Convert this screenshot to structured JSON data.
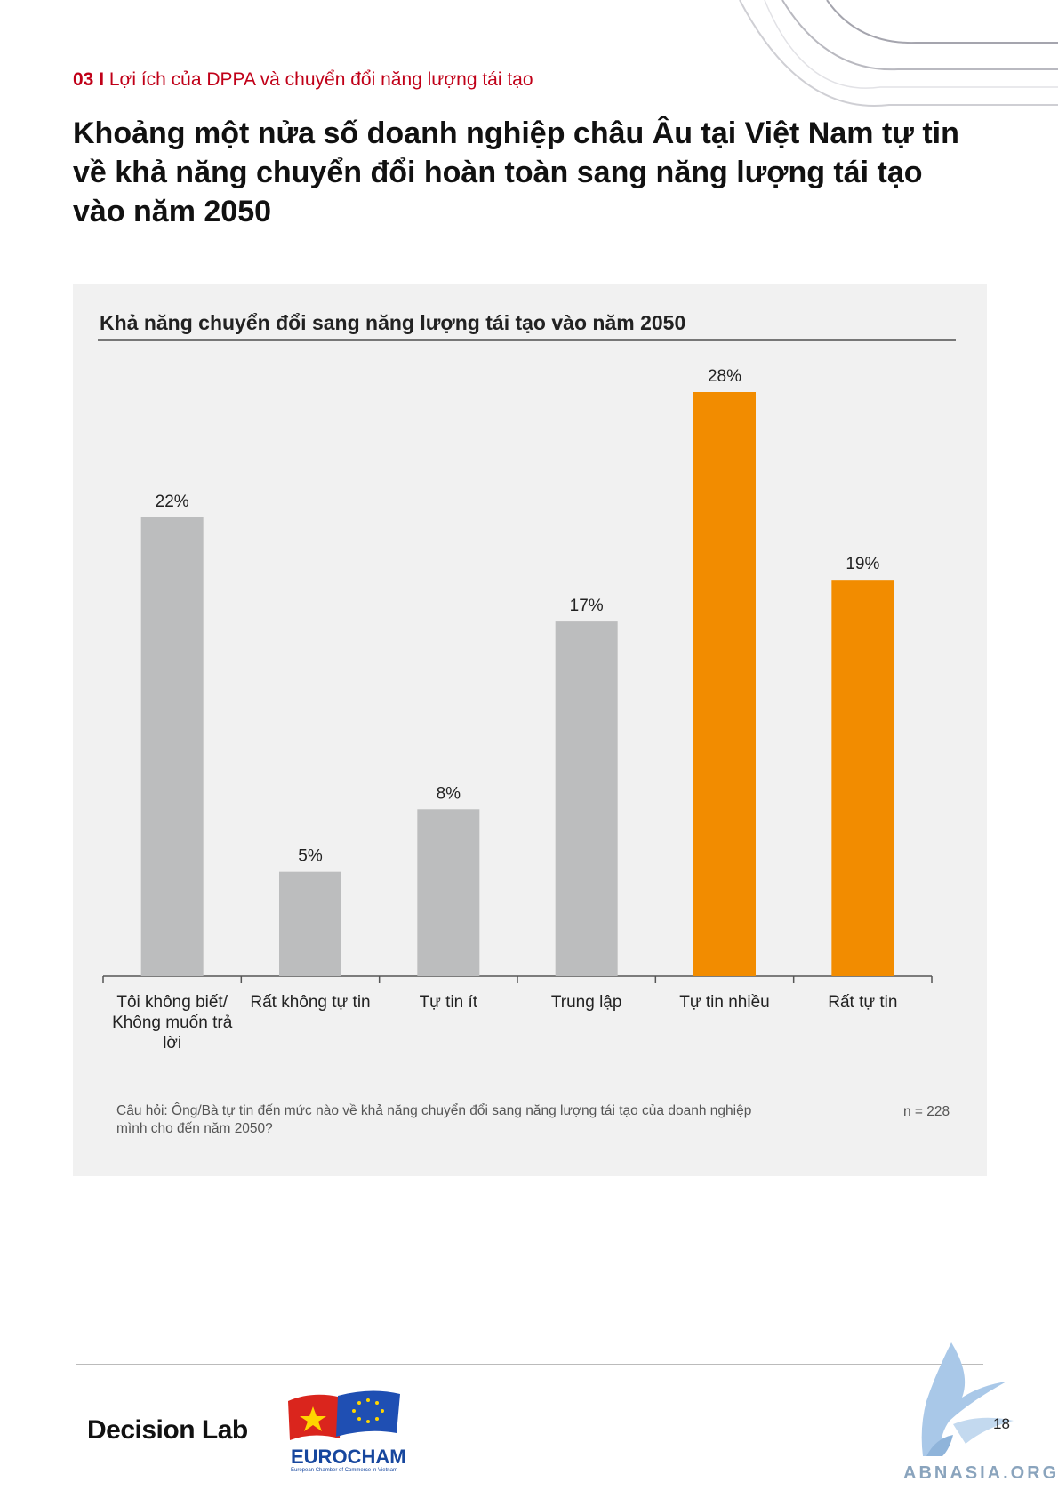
{
  "section": {
    "number": "03 I",
    "title": "Lợi ích của DPPA và chuyển đổi năng lượng tái tạo"
  },
  "headline": "Khoảng một nửa số doanh nghiệp châu Âu tại Việt Nam tự tin về khả năng chuyển đổi hoàn toàn sang năng lượng tái tạo vào năm 2050",
  "chart_data": {
    "type": "bar",
    "title": "Khả năng chuyển đổi sang năng lượng tái tạo vào năm 2050",
    "categories": [
      [
        "Tôi không biết/",
        "Không muốn trả",
        "lời"
      ],
      [
        "Rất không tự tin"
      ],
      [
        "Tự tin ít"
      ],
      [
        "Trung lập"
      ],
      [
        "Tự tin nhiều"
      ],
      [
        "Rất tự tin"
      ]
    ],
    "values": [
      22,
      5,
      8,
      17,
      28,
      19
    ],
    "value_labels": [
      "22%",
      "5%",
      "8%",
      "17%",
      "28%",
      "19%"
    ],
    "unit": "%",
    "ylim": [
      0,
      28
    ],
    "colors": [
      "#bcbdbe",
      "#bcbdbe",
      "#bcbdbe",
      "#bcbdbe",
      "#f28c00",
      "#f28c00"
    ],
    "grid": false,
    "legend": "none"
  },
  "footnote": {
    "question": "Câu hỏi: Ông/Bà tự tin đến mức nào về khả năng chuyển đổi sang năng lượng tái tạo của doanh nghiệp mình cho đến năm 2050?",
    "n": "n = 228"
  },
  "footer": {
    "decision_lab": "Decision Lab",
    "eurocham": "EUROCHAM",
    "eurocham_sub": "European Chamber of Commerce in Vietnam",
    "page_number": "18",
    "watermark": "ABNASIA.ORG"
  }
}
